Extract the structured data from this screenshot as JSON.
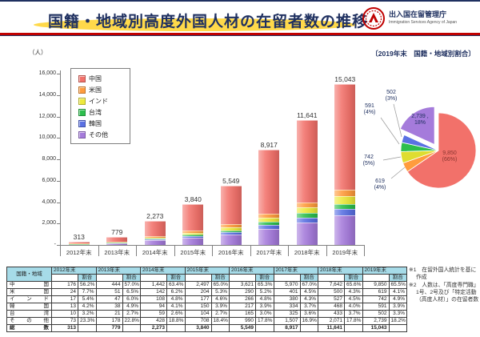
{
  "header": {
    "title": "国籍・地域別高度外国人材の在留者数の推移",
    "agency_name_ja": "出入国在留管理庁",
    "agency_name_en": "Immigration Services Agency of Japan"
  },
  "bar_section": {
    "unit_label": "（人）"
  },
  "pie_section": {
    "title": "〔2019年末　国籍・地域別割合〕"
  },
  "colors": {
    "title_navy": "#1F3060",
    "rule_red": "#C00000",
    "highlight_yellow": "#FFD94A",
    "table_header_bg": "#A6DBE8"
  },
  "chart_data": [
    {
      "type": "bar",
      "stacked": true,
      "unit_label": "（人）",
      "categories": [
        "2012年末",
        "2013年末",
        "2014年末",
        "2015年末",
        "2016年末",
        "2017年末",
        "2018年末",
        "2019年末"
      ],
      "series": [
        {
          "name": "中国",
          "color": "#F2716A",
          "values": [
            176,
            444,
            1442,
            2497,
            3621,
            5970,
            7642,
            9850
          ]
        },
        {
          "name": "米国",
          "color": "#FF9C3D",
          "values": [
            24,
            51,
            142,
            204,
            290,
            401,
            500,
            619
          ]
        },
        {
          "name": "インド",
          "color": "#EDE93C",
          "values": [
            17,
            47,
            108,
            177,
            266,
            380,
            527,
            742
          ]
        },
        {
          "name": "台湾",
          "color": "#2DBE4D",
          "values": [
            10,
            21,
            59,
            104,
            165,
            325,
            433,
            502
          ]
        },
        {
          "name": "韓国",
          "color": "#5A71E3",
          "values": [
            13,
            38,
            94,
            150,
            217,
            334,
            468,
            591
          ]
        },
        {
          "name": "その他",
          "color": "#A57BDB",
          "values": [
            73,
            178,
            428,
            708,
            990,
            1507,
            2071,
            2739
          ]
        }
      ],
      "totals": [
        "313",
        "779",
        "2,273",
        "3,840",
        "5,549",
        "8,917",
        "11,641",
        "15,043"
      ],
      "ylim": [
        0,
        16000
      ],
      "ytick_step": 2000,
      "ytick_labels": [
        "16,000",
        "14,000",
        "12,000",
        "10,000",
        "8,000",
        "6,000",
        "4,000",
        "2,000",
        "-"
      ],
      "stack_order_bottom_to_top": [
        "その他",
        "韓国",
        "台湾",
        "インド",
        "米国",
        "中国"
      ],
      "legend_position": "top-left-inside",
      "grid": false
    },
    {
      "type": "pie",
      "title": "〔2019年末　国籍・地域別割合〕",
      "start_angle": "top",
      "direction": "clockwise",
      "slices": [
        {
          "name": "中国",
          "value": 9850,
          "pct": "66%",
          "color": "#F2716A",
          "label": "9,850\n(66%)",
          "label_pos": "inside"
        },
        {
          "name": "米国",
          "value": 619,
          "pct": "4%",
          "color": "#FF9C3D",
          "label": "619\n(4%)",
          "label_pos": "outside"
        },
        {
          "name": "インド",
          "value": 742,
          "pct": "5%",
          "color": "#DFDD30",
          "label": "742\n(5%)",
          "label_pos": "outside"
        },
        {
          "name": "韓国",
          "value": 591,
          "pct": "4%",
          "color": "#2DBE4D",
          "label": "591\n(4%)",
          "label_pos": "outside"
        },
        {
          "name": "台湾",
          "value": 502,
          "pct": "3%",
          "color": "#5A71E3",
          "label": "502\n(3%)",
          "label_pos": "outside"
        },
        {
          "name": "その他",
          "value": 2739,
          "pct": "18%",
          "color": "#A57BDB",
          "label": "2,739 ,\n18%",
          "label_pos": "inside",
          "exploded": true
        }
      ]
    }
  ],
  "table": {
    "corner_label": "国籍・地域",
    "ratio_label": "割合",
    "years": [
      "2012年末",
      "2013年末",
      "2014年末",
      "2015年末",
      "2016年末",
      "2017年末",
      "2018年末",
      "2019年末"
    ],
    "rows": [
      {
        "label": "中国",
        "values": [
          [
            "176",
            "56.2%"
          ],
          [
            "444",
            "57.0%"
          ],
          [
            "1,442",
            "63.4%"
          ],
          [
            "2,497",
            "65.0%"
          ],
          [
            "3,621",
            "65.3%"
          ],
          [
            "5,970",
            "67.0%"
          ],
          [
            "7,642",
            "65.6%"
          ],
          [
            "9,850",
            "65.5%"
          ]
        ]
      },
      {
        "label": "米国",
        "values": [
          [
            "24",
            "7.7%"
          ],
          [
            "51",
            "6.5%"
          ],
          [
            "142",
            "6.2%"
          ],
          [
            "204",
            "5.3%"
          ],
          [
            "290",
            "5.2%"
          ],
          [
            "401",
            "4.5%"
          ],
          [
            "500",
            "4.3%"
          ],
          [
            "619",
            "4.1%"
          ]
        ]
      },
      {
        "label": "インド",
        "values": [
          [
            "17",
            "5.4%"
          ],
          [
            "47",
            "6.0%"
          ],
          [
            "108",
            "4.8%"
          ],
          [
            "177",
            "4.6%"
          ],
          [
            "266",
            "4.8%"
          ],
          [
            "380",
            "4.3%"
          ],
          [
            "527",
            "4.5%"
          ],
          [
            "742",
            "4.9%"
          ]
        ]
      },
      {
        "label": "韓国",
        "values": [
          [
            "13",
            "4.2%"
          ],
          [
            "38",
            "4.9%"
          ],
          [
            "94",
            "4.1%"
          ],
          [
            "150",
            "3.9%"
          ],
          [
            "217",
            "3.9%"
          ],
          [
            "334",
            "3.7%"
          ],
          [
            "468",
            "4.0%"
          ],
          [
            "591",
            "3.9%"
          ]
        ]
      },
      {
        "label": "台湾",
        "values": [
          [
            "10",
            "3.2%"
          ],
          [
            "21",
            "2.7%"
          ],
          [
            "59",
            "2.6%"
          ],
          [
            "104",
            "2.7%"
          ],
          [
            "165",
            "3.0%"
          ],
          [
            "325",
            "3.6%"
          ],
          [
            "433",
            "3.7%"
          ],
          [
            "502",
            "3.3%"
          ]
        ]
      },
      {
        "label": "その他",
        "values": [
          [
            "73",
            "23.3%"
          ],
          [
            "178",
            "22.8%"
          ],
          [
            "428",
            "18.8%"
          ],
          [
            "708",
            "18.4%"
          ],
          [
            "990",
            "17.8%"
          ],
          [
            "1,507",
            "16.9%"
          ],
          [
            "2,071",
            "17.8%"
          ],
          [
            "2,739",
            "18.2%"
          ]
        ]
      },
      {
        "label": "総数",
        "bold": true,
        "values": [
          [
            "313",
            ""
          ],
          [
            "779",
            ""
          ],
          [
            "2,273",
            ""
          ],
          [
            "3,840",
            ""
          ],
          [
            "5,549",
            ""
          ],
          [
            "8,917",
            ""
          ],
          [
            "11,641",
            ""
          ],
          [
            "15,043",
            ""
          ]
        ]
      }
    ]
  },
  "notes": [
    "※1　在留外国人統計を基に作成",
    "※2　人数は、「高度専門職」1号、2号及び「特定活動（高度人材）」の在留者数"
  ]
}
